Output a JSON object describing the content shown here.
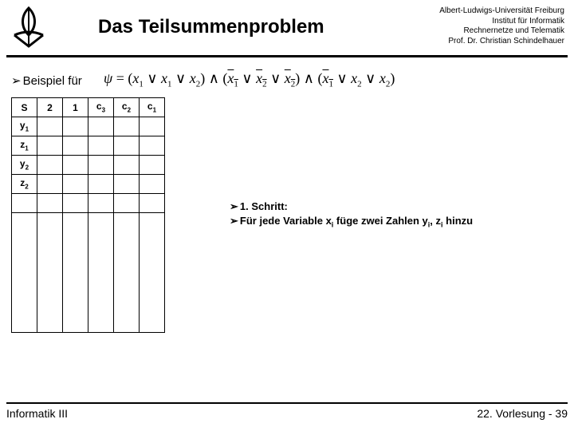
{
  "header": {
    "title": "Das Teilsummenproblem",
    "affiliation": {
      "l1": "Albert-Ludwigs-Universität Freiburg",
      "l2": "Institut für Informatik",
      "l3": "Rechnernetze und Telematik",
      "l4": "Prof. Dr. Christian Schindelhauer"
    }
  },
  "subtitle_prefix": "➢",
  "subtitle": "Beispiel für",
  "formula": {
    "psi": "ψ",
    "eq": " = ",
    "and": " ∧ ",
    "or": " ∨ ",
    "lp": "(",
    "rp": ")",
    "x1": "x",
    "s1": "1",
    "x2": "x",
    "s2": "2"
  },
  "table": {
    "columns": [
      {
        "label": "S",
        "sub": ""
      },
      {
        "label": "2",
        "sub": ""
      },
      {
        "label": "1",
        "sub": ""
      },
      {
        "label": "c",
        "sub": "3"
      },
      {
        "label": "c",
        "sub": "2"
      },
      {
        "label": "c",
        "sub": "1"
      }
    ],
    "rows": [
      {
        "label": "y",
        "sub": "1"
      },
      {
        "label": "z",
        "sub": "1"
      },
      {
        "label": "y",
        "sub": "2"
      },
      {
        "label": "z",
        "sub": "2"
      }
    ],
    "extra_rows": 1,
    "tall_row": true
  },
  "step": {
    "bullet": "➢",
    "l1": "1. Schritt:",
    "l2a": "Für jede Variable x",
    "l2a_sub": "i",
    "l2b": " füge zwei Zahlen y",
    "l2b_sub": "i",
    "l2c": ", z",
    "l2c_sub": "i",
    "l2d": " hinzu"
  },
  "footer": {
    "left": "Informatik III",
    "right": "22. Vorlesung - 39"
  },
  "colors": {
    "text": "#000000",
    "background": "#ffffff"
  }
}
